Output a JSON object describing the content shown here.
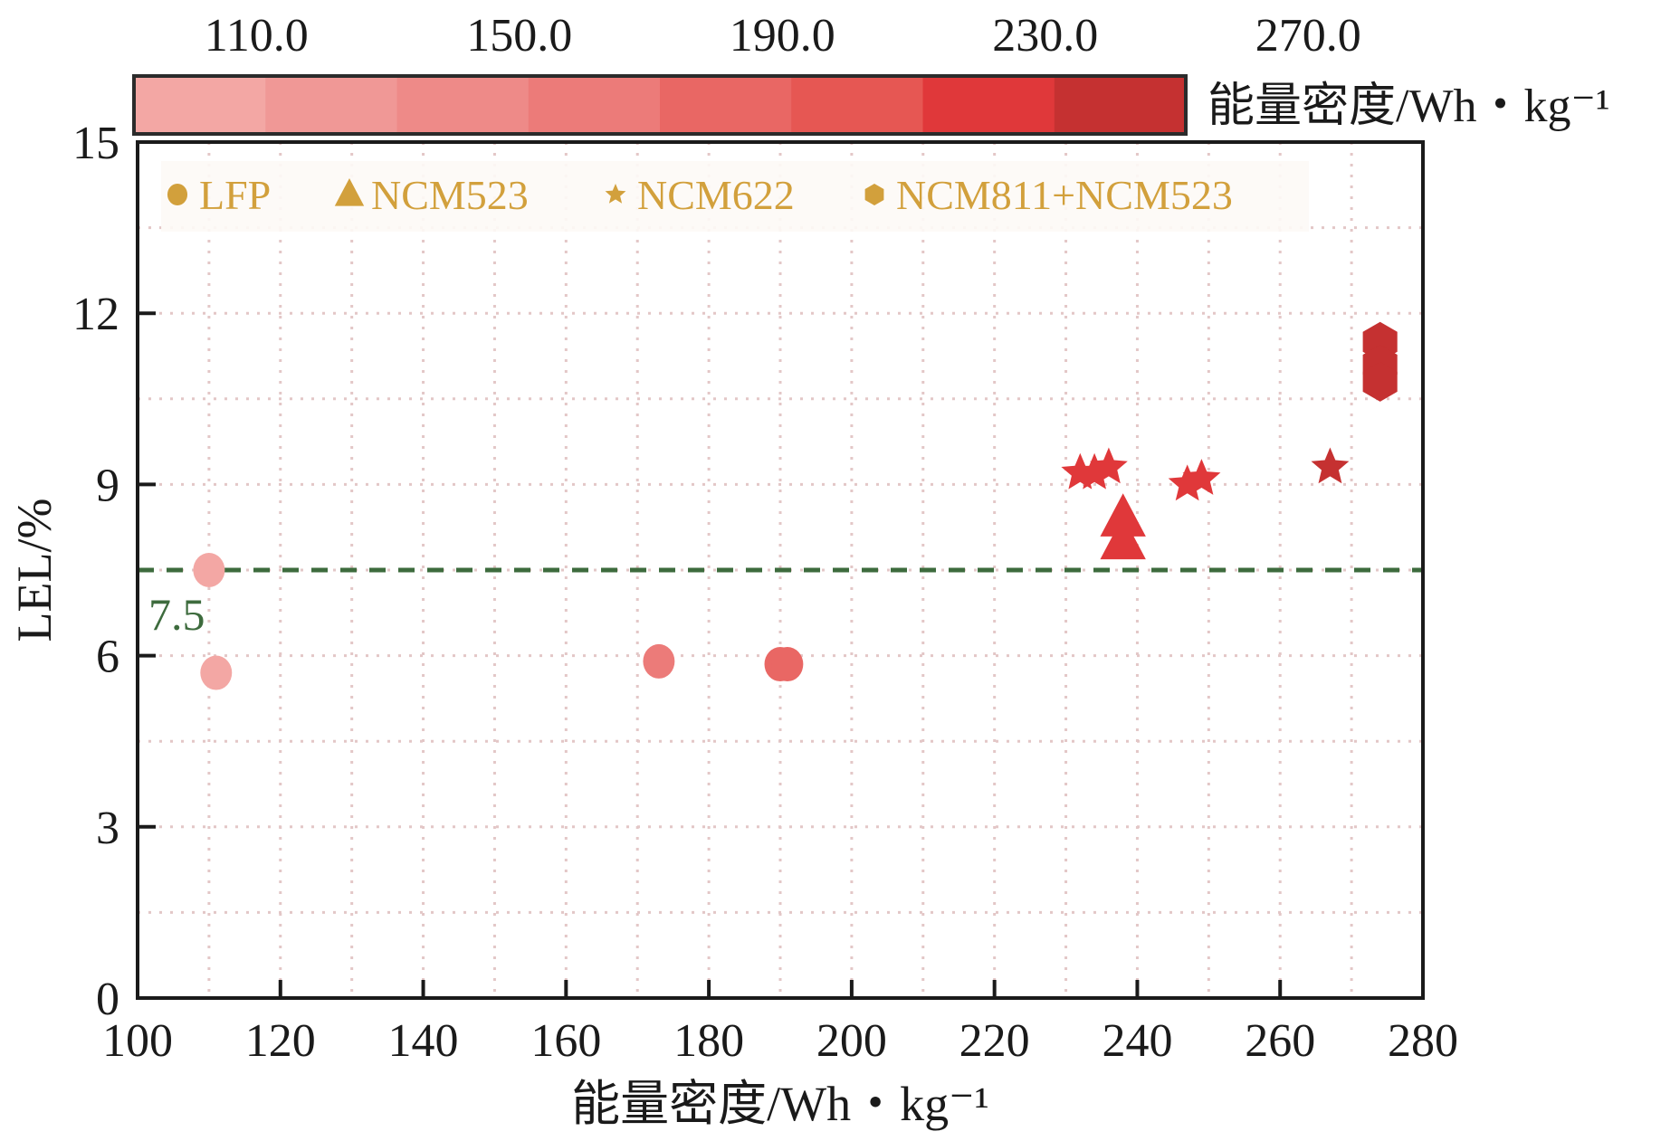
{
  "chart_data": {
    "type": "scatter",
    "title": "",
    "xlabel": "能量密度/Wh・kg⁻¹",
    "ylabel": "LEL/%",
    "xlim": [
      100,
      280
    ],
    "ylim": [
      0,
      15
    ],
    "xticks": [
      "100",
      "120",
      "140",
      "160",
      "180",
      "200",
      "220",
      "240",
      "260",
      "280"
    ],
    "yticks": [
      "0",
      "3",
      "6",
      "9",
      "12",
      "15"
    ],
    "grid": true,
    "legend_placement": "top-left, inside plot",
    "legend_color": "#d2a03c",
    "reference_line": {
      "y": 7.5,
      "label": "7.5",
      "style": "dashed",
      "color": "#3d6b3d"
    },
    "colorbar": {
      "label": "能量密度/Wh・kg⁻¹",
      "placement": "top",
      "tick_labels": [
        "110.0",
        "150.0",
        "190.0",
        "230.0",
        "270.0"
      ],
      "range": [
        110,
        270
      ],
      "colors": [
        "#f3a7a4",
        "#f09896",
        "#ee8a88",
        "#ec7b79",
        "#e96764",
        "#e65753",
        "#e0383a",
        "#c53131"
      ]
    },
    "series": [
      {
        "name": "LFP",
        "marker": "circle",
        "points": [
          {
            "x": 110,
            "y": 7.5
          },
          {
            "x": 111,
            "y": 5.7
          },
          {
            "x": 173,
            "y": 5.9
          },
          {
            "x": 190,
            "y": 5.85
          },
          {
            "x": 191,
            "y": 5.85
          }
        ]
      },
      {
        "name": "NCM523",
        "marker": "triangle",
        "points": [
          {
            "x": 238,
            "y": 8.4
          },
          {
            "x": 238,
            "y": 8.0
          }
        ]
      },
      {
        "name": "NCM622",
        "marker": "star",
        "points": [
          {
            "x": 232,
            "y": 9.2
          },
          {
            "x": 234,
            "y": 9.2
          },
          {
            "x": 236,
            "y": 9.3
          },
          {
            "x": 247,
            "y": 9.0
          },
          {
            "x": 249,
            "y": 9.1
          },
          {
            "x": 267,
            "y": 9.3
          }
        ]
      },
      {
        "name": "NCM811+NCM523",
        "marker": "hexagon",
        "points": [
          {
            "x": 274,
            "y": 11.5
          },
          {
            "x": 274,
            "y": 11.1
          },
          {
            "x": 274,
            "y": 10.8
          }
        ]
      }
    ]
  }
}
